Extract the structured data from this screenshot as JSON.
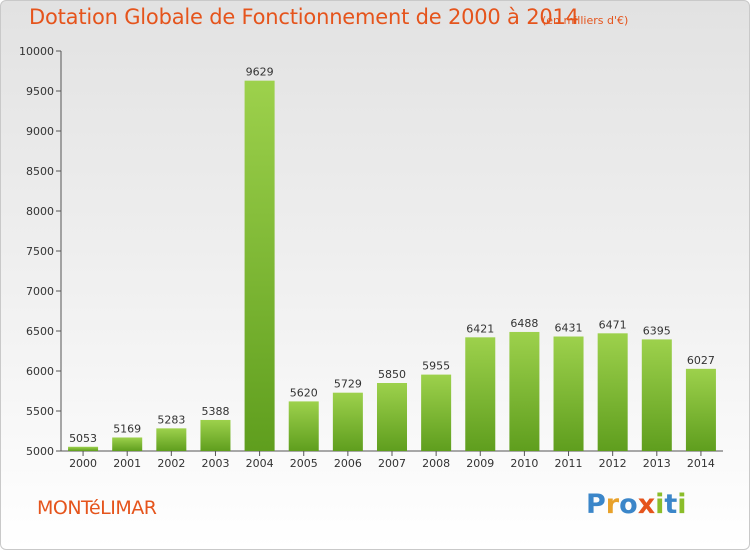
{
  "chart_data": {
    "type": "bar",
    "title": "Dotation Globale de Fonctionnement de 2000 à 2014",
    "subtitle": "(en milliers d'€)",
    "categories": [
      "2000",
      "2001",
      "2002",
      "2003",
      "2004",
      "2005",
      "2006",
      "2007",
      "2008",
      "2009",
      "2010",
      "2011",
      "2012",
      "2013",
      "2014"
    ],
    "values": [
      5053,
      5169,
      5283,
      5388,
      9629,
      5620,
      5729,
      5850,
      5955,
      6421,
      6488,
      6431,
      6471,
      6395,
      6027
    ],
    "ylim": [
      5000,
      10000
    ],
    "yticks": [
      5000,
      5500,
      6000,
      6500,
      7000,
      7500,
      8000,
      8500,
      9000,
      9500,
      10000
    ],
    "xlabel": "",
    "ylabel": "",
    "grid": false,
    "colors": {
      "bar_top": "#9dd14c",
      "bar_bottom": "#5f9e1e",
      "accent": "#e5541c"
    }
  },
  "footer": {
    "city": "MONTéLIMAR",
    "brand": {
      "letters": [
        "P",
        "r",
        "o",
        "x",
        "i",
        "t",
        "i"
      ],
      "colors": [
        "#3b86c9",
        "#e8a12a",
        "#3b86c9",
        "#e5541c",
        "#8bbd2a",
        "#3b86c9",
        "#8bbd2a"
      ]
    }
  }
}
